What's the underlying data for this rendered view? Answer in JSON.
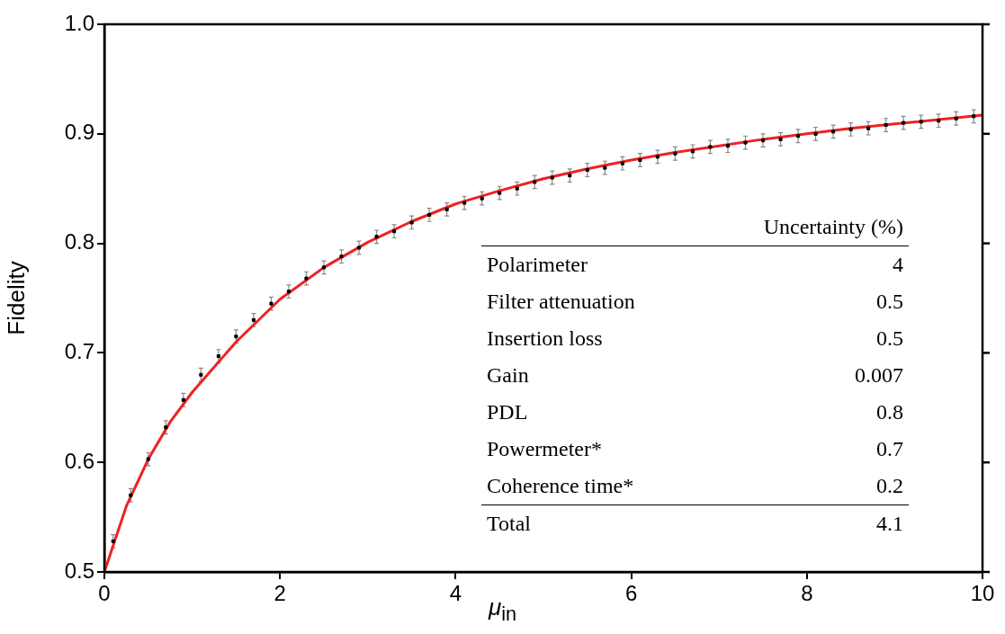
{
  "chart_data": {
    "type": "scatter",
    "xlabel": "μ$_{in}$",
    "ylabel": "Fidelity",
    "xlim": [
      0,
      10
    ],
    "ylim": [
      0.5,
      1.0
    ],
    "xticks": [
      0,
      2,
      4,
      6,
      8,
      10
    ],
    "yticks": [
      0.5,
      0.6,
      0.7,
      0.8,
      0.9,
      {
        "value": 1.0,
        "label": "1.0"
      }
    ],
    "grid": false,
    "legend": false,
    "marker": "square",
    "series": [
      {
        "color": "#000000",
        "x": [
          0.1,
          0.3,
          0.5,
          0.7,
          0.9,
          1.1,
          1.3,
          1.5,
          1.7,
          1.9,
          2.1,
          2.3,
          2.5,
          2.7,
          2.9,
          3.1,
          3.3,
          3.5,
          3.7,
          3.9,
          4.1,
          4.3,
          4.5,
          4.7,
          4.9,
          5.1,
          5.3,
          5.5,
          5.7,
          5.9,
          6.1,
          6.3,
          6.5,
          6.7,
          6.9,
          7.1,
          7.3,
          7.5,
          7.7,
          7.9,
          8.1,
          8.3,
          8.5,
          8.7,
          8.9,
          9.1,
          9.3,
          9.5,
          9.7,
          9.9
        ],
        "values": [
          0.528,
          0.57,
          0.603,
          0.632,
          0.657,
          0.68,
          0.697,
          0.715,
          0.73,
          0.745,
          0.756,
          0.768,
          0.778,
          0.788,
          0.796,
          0.806,
          0.811,
          0.819,
          0.826,
          0.831,
          0.837,
          0.841,
          0.846,
          0.85,
          0.856,
          0.86,
          0.862,
          0.867,
          0.869,
          0.873,
          0.876,
          0.879,
          0.882,
          0.884,
          0.888,
          0.889,
          0.892,
          0.894,
          0.895,
          0.898,
          0.9,
          0.902,
          0.904,
          0.905,
          0.908,
          0.91,
          0.911,
          0.912,
          0.914,
          0.916
        ],
        "errors": [
          0.006,
          0.006,
          0.006,
          0.006,
          0.006,
          0.006,
          0.006,
          0.006,
          0.006,
          0.006,
          0.006,
          0.006,
          0.006,
          0.006,
          0.006,
          0.006,
          0.006,
          0.006,
          0.006,
          0.006,
          0.006,
          0.006,
          0.006,
          0.006,
          0.006,
          0.006,
          0.006,
          0.006,
          0.006,
          0.006,
          0.006,
          0.006,
          0.006,
          0.006,
          0.006,
          0.006,
          0.006,
          0.006,
          0.006,
          0.006,
          0.006,
          0.006,
          0.006,
          0.006,
          0.006,
          0.006,
          0.006,
          0.006,
          0.006,
          0.006
        ]
      },
      {
        "type": "line",
        "color": "#ee2222",
        "line_style": "solid",
        "marker": "none",
        "x": [
          0,
          0.25,
          0.5,
          0.75,
          1,
          1.5,
          2,
          2.5,
          3,
          3.5,
          4,
          4.5,
          5,
          5.5,
          6,
          6.5,
          7,
          7.5,
          8,
          8.5,
          9,
          9.5,
          10
        ],
        "values": [
          0.5,
          0.56,
          0.603,
          0.637,
          0.664,
          0.71,
          0.749,
          0.778,
          0.801,
          0.82,
          0.836,
          0.848,
          0.859,
          0.868,
          0.876,
          0.883,
          0.889,
          0.895,
          0.9,
          0.905,
          0.909,
          0.913,
          0.917
        ]
      }
    ],
    "annotations": [
      "Uncertainty (%)",
      "Polarimeter",
      "4",
      "Filter attenuation",
      "0.5",
      "Insertion loss",
      "0.5",
      "Gain",
      "0.007",
      "PDL",
      "0.8",
      "Powermeter*",
      "0.7",
      "Coherence time*",
      "0.2",
      "Total",
      "4.1"
    ]
  }
}
